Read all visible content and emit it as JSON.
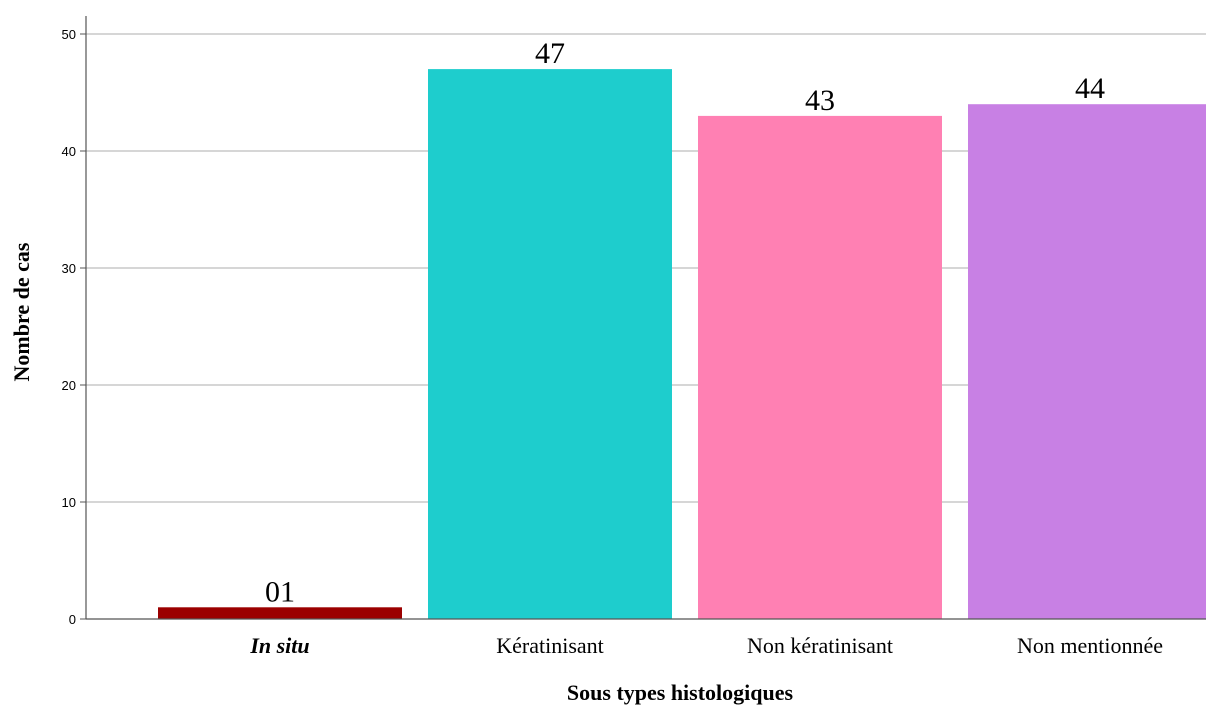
{
  "chart_data": {
    "type": "bar",
    "categories": [
      "In situ",
      "Kératinisant",
      "Non kératinisant",
      "Non mentionnée"
    ],
    "category_italic": [
      true,
      false,
      false,
      false
    ],
    "values": [
      1,
      47,
      43,
      44
    ],
    "data_labels": [
      "01",
      "47",
      "43",
      "44"
    ],
    "colors": [
      "#9b0000",
      "#1ecdcd",
      "#ff80b3",
      "#c880e4"
    ],
    "xlabel": "Sous types histologiques",
    "ylabel": "Nombre de cas",
    "ylim": [
      0,
      50
    ],
    "yticks": [
      0,
      10,
      20,
      30,
      40,
      50
    ],
    "grid": true,
    "legend": "none"
  }
}
